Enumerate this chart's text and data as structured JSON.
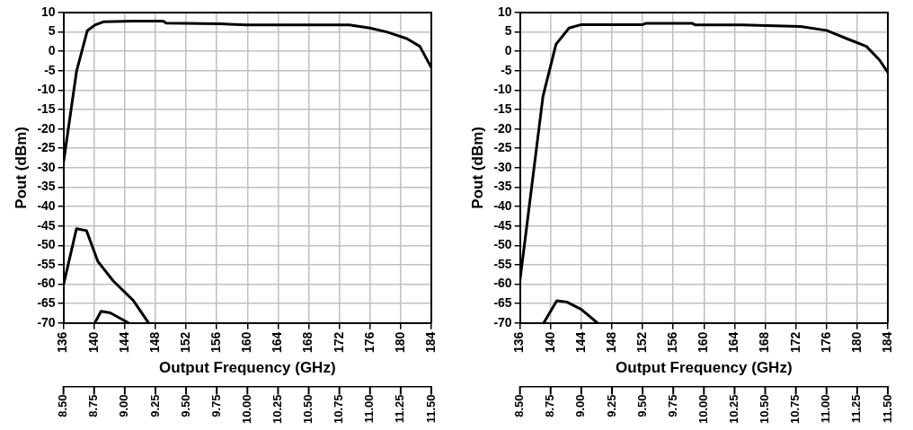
{
  "chart_data": [
    {
      "type": "line",
      "xlabel": "Output Frequency (GHz)",
      "ylabel": "Pout (dBm)",
      "xlim": [
        136,
        184
      ],
      "xticks": [
        136,
        140,
        144,
        148,
        152,
        156,
        160,
        164,
        168,
        172,
        176,
        180,
        184
      ],
      "ylim": [
        -70,
        10
      ],
      "yticks": [
        -70,
        -65,
        -60,
        -55,
        -50,
        -45,
        -40,
        -35,
        -30,
        -25,
        -20,
        -15,
        -10,
        -5,
        0,
        5,
        10
      ],
      "x2lim": [
        8.5,
        11.5
      ],
      "x2ticks": [
        {
          "value": 8.5,
          "label": "8.50"
        },
        {
          "value": 8.75,
          "label": "8.75"
        },
        {
          "value": 9,
          "label": "9.00"
        },
        {
          "value": 9.25,
          "label": "9.25"
        },
        {
          "value": 9.5,
          "label": "9.50"
        },
        {
          "value": 9.75,
          "label": "9.75"
        },
        {
          "value": 10,
          "label": "10.00"
        },
        {
          "value": 10.25,
          "label": "10.25"
        },
        {
          "value": 10.5,
          "label": "10.50"
        },
        {
          "value": 10.75,
          "label": "10.75"
        },
        {
          "value": 11,
          "label": "11.00"
        },
        {
          "value": 11.25,
          "label": "11.25"
        },
        {
          "value": 11.5,
          "label": "11.50"
        }
      ],
      "grid": true,
      "line_style": "solid",
      "marker": "none",
      "series": [
        {
          "color": "#000000",
          "x": [
            136,
            137.7,
            139.1,
            140.1,
            141.2,
            145.1,
            149,
            149.4,
            156.4,
            159.9,
            173.3,
            176,
            178.2,
            180.8,
            182.5,
            184
          ],
          "values": [
            -28.7,
            -5.2,
            5.3,
            6.8,
            7.6,
            7.8,
            7.8,
            7.3,
            7.1,
            6.8,
            6.8,
            6,
            5,
            3.3,
            1.3,
            -4.2
          ]
        },
        {
          "color": "#000000",
          "x": [
            136,
            137.7,
            139,
            140.5,
            142.5,
            145.1,
            147.1
          ],
          "values": [
            -60.2,
            -45.7,
            -46.2,
            -54.2,
            -59.2,
            -64.2,
            -70
          ]
        },
        {
          "color": "#000000",
          "x": [
            140.1,
            140.9,
            142.1,
            144.5
          ],
          "values": [
            -70,
            -67,
            -67.4,
            -70
          ]
        }
      ]
    },
    {
      "type": "line",
      "xlabel": "Output Frequency (GHz)",
      "ylabel": "Pout (dBm)",
      "xlim": [
        136,
        184
      ],
      "xticks": [
        136,
        140,
        144,
        148,
        152,
        156,
        160,
        164,
        168,
        172,
        176,
        180,
        184
      ],
      "ylim": [
        -70,
        10
      ],
      "yticks": [
        -70,
        -65,
        -60,
        -55,
        -50,
        -45,
        -40,
        -35,
        -30,
        -25,
        -20,
        -15,
        -10,
        -5,
        0,
        5,
        10
      ],
      "x2lim": [
        8.5,
        11.5
      ],
      "x2ticks": [
        {
          "value": 8.5,
          "label": "8.50"
        },
        {
          "value": 8.75,
          "label": "8.75"
        },
        {
          "value": 9,
          "label": "9.00"
        },
        {
          "value": 9.25,
          "label": "9.25"
        },
        {
          "value": 9.5,
          "label": "9.50"
        },
        {
          "value": 9.75,
          "label": "9.75"
        },
        {
          "value": 10,
          "label": "10.00"
        },
        {
          "value": 10.25,
          "label": "10.25"
        },
        {
          "value": 10.5,
          "label": "10.50"
        },
        {
          "value": 10.75,
          "label": "10.75"
        },
        {
          "value": 11,
          "label": "11.00"
        },
        {
          "value": 11.25,
          "label": "11.25"
        },
        {
          "value": 11.5,
          "label": "11.50"
        }
      ],
      "grid": true,
      "line_style": "solid",
      "marker": "none",
      "series": [
        {
          "color": "#000000",
          "x": [
            136,
            139,
            140.7,
            142.4,
            144,
            152,
            152.4,
            158.5,
            158.9,
            164.9,
            172.6,
            176,
            179,
            181.2,
            182.9,
            184
          ],
          "values": [
            -59.1,
            -11.6,
            1.8,
            6,
            6.9,
            6.9,
            7.2,
            7.2,
            6.8,
            6.8,
            6.4,
            5.4,
            3,
            1.3,
            -2.2,
            -5.4
          ]
        },
        {
          "color": "#000000",
          "x": [
            139.1,
            140.8,
            142.1,
            144,
            146.1
          ],
          "values": [
            -70,
            -64.3,
            -64.6,
            -66.5,
            -70
          ]
        }
      ]
    }
  ]
}
